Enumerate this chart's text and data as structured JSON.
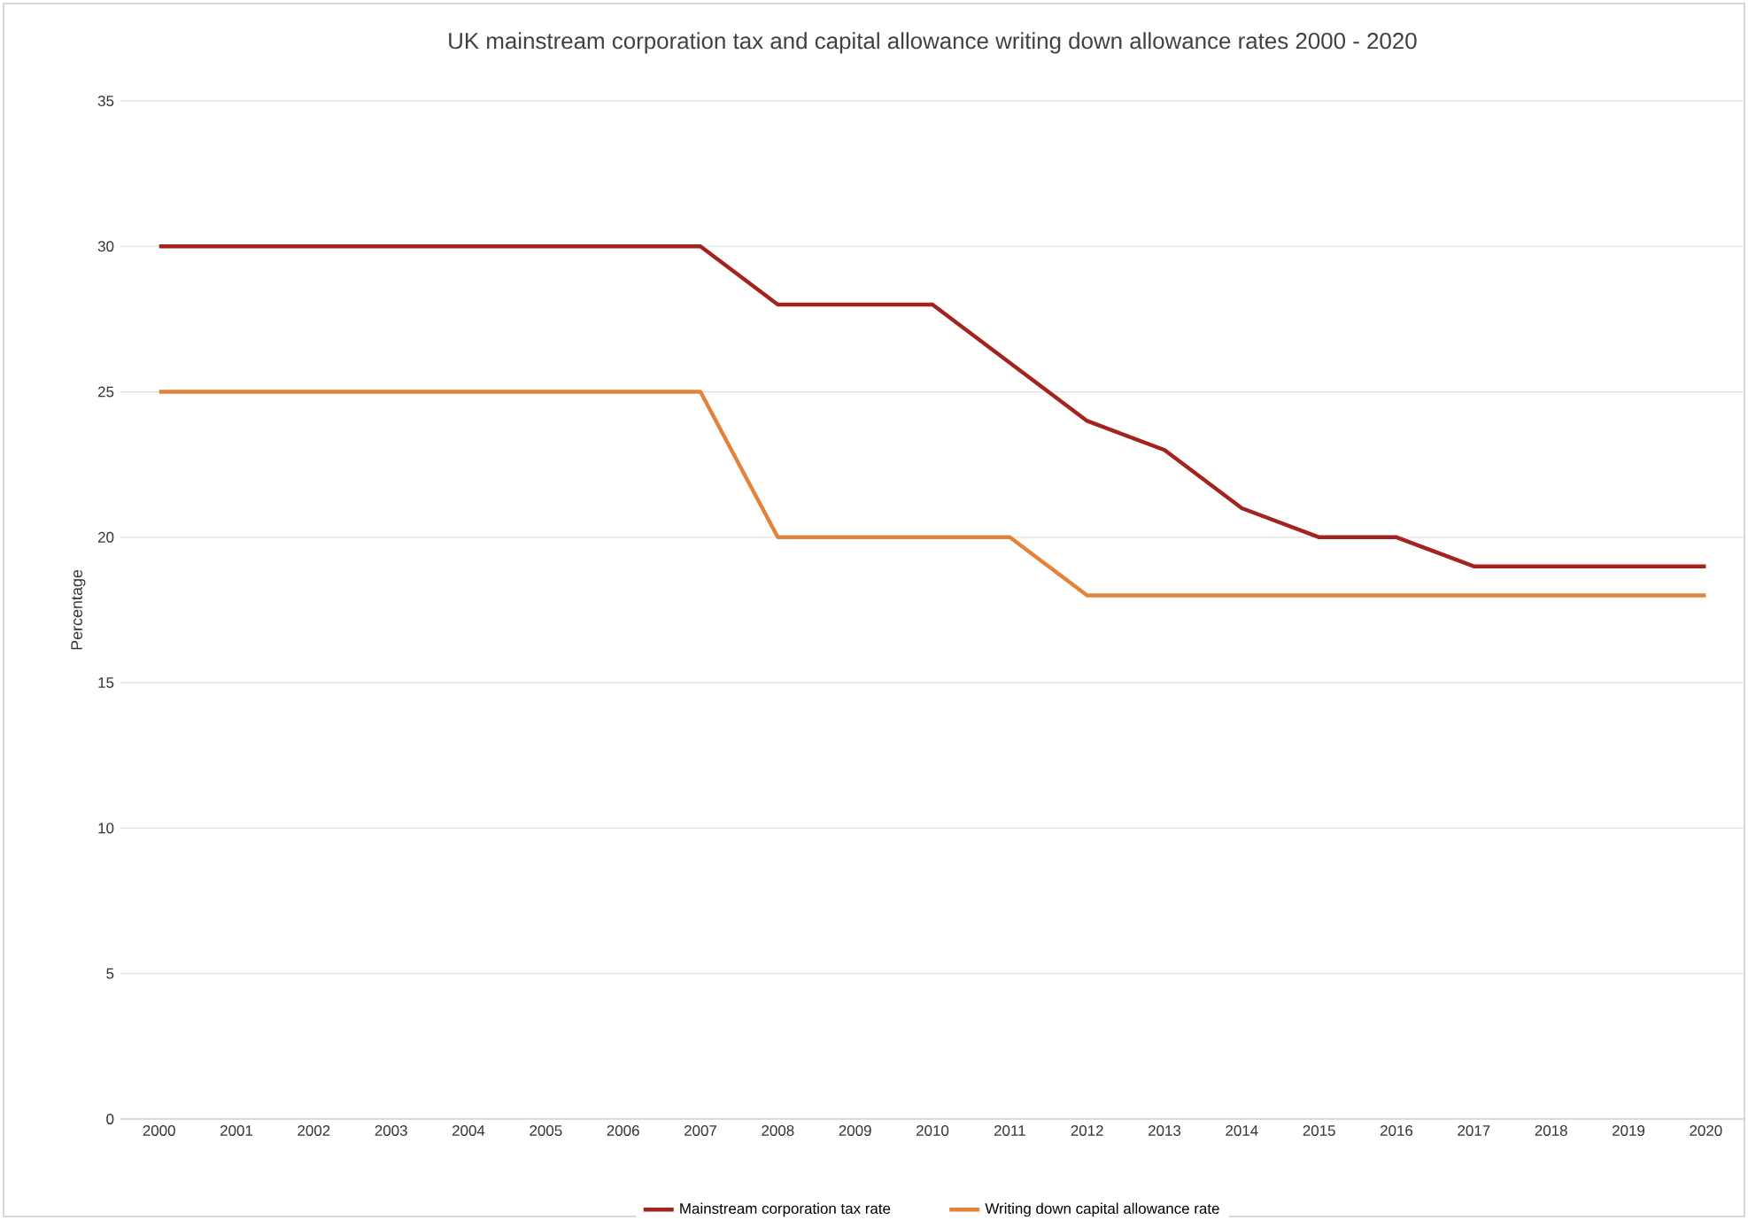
{
  "chart_data": {
    "type": "line",
    "title": "UK mainstream corporation tax and capital allowance writing down allowance rates 2000 - 2020",
    "ylabel": "Percentage",
    "categories": [
      "2000",
      "2001",
      "2002",
      "2003",
      "2004",
      "2005",
      "2006",
      "2007",
      "2008",
      "2009",
      "2010",
      "2011",
      "2012",
      "2013",
      "2014",
      "2015",
      "2016",
      "2017",
      "2018",
      "2019",
      "2020"
    ],
    "series": [
      {
        "name": "Mainstream corporation tax rate",
        "color": "#a5231f",
        "values": [
          30,
          30,
          30,
          30,
          30,
          30,
          30,
          30,
          28,
          28,
          28,
          26,
          24,
          23,
          21,
          20,
          20,
          19,
          19,
          19,
          19
        ]
      },
      {
        "name": "Writing down capital allowance rate",
        "color": "#e3833b",
        "values": [
          25,
          25,
          25,
          25,
          25,
          25,
          25,
          25,
          20,
          20,
          20,
          20,
          18,
          18,
          18,
          18,
          18,
          18,
          18,
          18,
          18
        ]
      }
    ],
    "ylim": [
      0,
      35
    ],
    "yticks": [
      0,
      5,
      10,
      15,
      20,
      25,
      30,
      35
    ],
    "grid": "y",
    "legend": "bottom",
    "marker": "none",
    "line_style": "solid"
  }
}
